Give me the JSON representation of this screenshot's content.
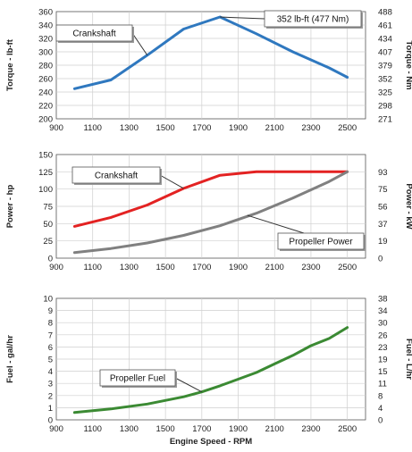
{
  "chart_data": [
    {
      "type": "line",
      "x": [
        1000,
        1200,
        1400,
        1600,
        1800,
        2000,
        2200,
        2400,
        2500
      ],
      "xlim": [
        900,
        2600
      ],
      "xticks": [
        900,
        1100,
        1300,
        1500,
        1700,
        1900,
        2100,
        2300,
        2500
      ],
      "ylim": [
        200,
        360
      ],
      "yticks": [
        200,
        220,
        240,
        260,
        280,
        300,
        320,
        340,
        360
      ],
      "y2ticks": [
        "271",
        "298",
        "325",
        "352",
        "379",
        "407",
        "434",
        "461",
        "488"
      ],
      "ylabel": "Torque - lb-ft",
      "y2label": "Torque - Nm",
      "series": [
        {
          "name": "Crankshaft",
          "color": "#2f78bf",
          "values": [
            245,
            258,
            295,
            334,
            352,
            327,
            300,
            276,
            262
          ]
        }
      ],
      "annotations": [
        {
          "text": "Crankshaft",
          "series": 0
        },
        {
          "text": "352 lb-ft (477 Nm)",
          "series": 0
        }
      ],
      "grid": true
    },
    {
      "type": "line",
      "x": [
        1000,
        1200,
        1400,
        1600,
        1800,
        2000,
        2200,
        2400,
        2500
      ],
      "xlim": [
        900,
        2600
      ],
      "xticks": [
        900,
        1100,
        1300,
        1500,
        1700,
        1900,
        2100,
        2300,
        2500
      ],
      "ylim": [
        0,
        150
      ],
      "yticks": [
        0,
        25,
        50,
        75,
        100,
        125,
        150
      ],
      "y2ticks": [
        "0",
        "19",
        "37",
        "56",
        "75",
        "93"
      ],
      "ylabel": "Power - hp",
      "y2label": "Power - kW",
      "series": [
        {
          "name": "Crankshaft",
          "color": "#e32222",
          "values": [
            46,
            59,
            77,
            101,
            120,
            125,
            125,
            125,
            125
          ]
        },
        {
          "name": "Propeller Power",
          "color": "#808080",
          "values": [
            8,
            14,
            22,
            33,
            47,
            65,
            87,
            111,
            125
          ]
        }
      ],
      "grid": true
    },
    {
      "type": "line",
      "x": [
        1000,
        1200,
        1400,
        1600,
        1700,
        1800,
        2000,
        2100,
        2200,
        2300,
        2400,
        2500
      ],
      "xlim": [
        900,
        2600
      ],
      "xticks": [
        900,
        1100,
        1300,
        1500,
        1700,
        1900,
        2100,
        2300,
        2500
      ],
      "ylim": [
        0,
        10
      ],
      "yticks": [
        0,
        1,
        2,
        3,
        4,
        5,
        6,
        7,
        8,
        9,
        10
      ],
      "y2ticks": [
        "0",
        "4",
        "8",
        "11",
        "15",
        "19",
        "23",
        "26",
        "30",
        "34",
        "38"
      ],
      "xlabel": "Engine Speed - RPM",
      "ylabel": "Fuel - gal/hr",
      "y2label": "Fuel - L/hr",
      "series": [
        {
          "name": "Propeller Fuel",
          "color": "#3b8a33",
          "values": [
            0.6,
            0.9,
            1.3,
            1.9,
            2.3,
            2.8,
            3.9,
            4.6,
            5.3,
            6.1,
            6.7,
            7.6
          ]
        }
      ],
      "grid": true
    }
  ]
}
